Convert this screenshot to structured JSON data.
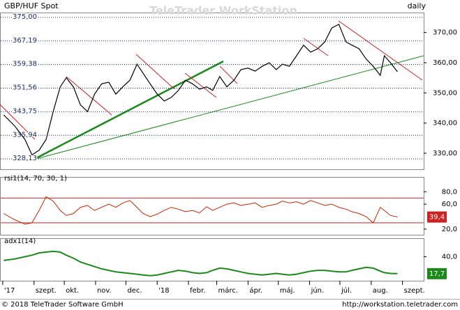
{
  "header": {
    "symbol": "GBP/HUF Spot",
    "period": "daily",
    "watermark": "TeleTrader WorkStation"
  },
  "footer": {
    "copyright": "© 2018 TeleTrader Software GmbH",
    "url": "http://workstation.teletrader.com"
  },
  "chart_data": [
    {
      "type": "line",
      "title": "GBP/HUF Spot",
      "x": [
        1,
        12,
        22,
        29,
        36,
        43,
        50,
        57,
        63,
        70,
        77,
        84,
        91,
        98,
        105,
        112,
        119,
        126,
        133,
        139,
        146,
        153,
        160,
        167,
        174,
        181,
        188,
        195,
        202,
        208,
        215,
        222,
        229,
        236,
        243,
        250,
        257,
        264,
        271,
        277,
        284,
        291,
        298,
        305,
        312,
        319,
        326,
        333,
        340,
        346,
        353,
        360,
        367,
        374,
        378,
        384,
        391
      ],
      "series": [
        {
          "name": "GBP/HUF Spot",
          "color": "#000000",
          "values": [
            342.7,
            339,
            334.6,
            329.5,
            331,
            334.6,
            343.8,
            352,
            355,
            352,
            346,
            343.8,
            349.6,
            353,
            353.5,
            349.6,
            352,
            354.2,
            359.5,
            356.5,
            353,
            349.6,
            347.3,
            348.5,
            350.8,
            354.2,
            353,
            351.2,
            352,
            350.8,
            355.4,
            352,
            354.2,
            357.7,
            358.2,
            357.2,
            358.8,
            360,
            357.7,
            359.5,
            358.8,
            362.3,
            365.8,
            363.5,
            364.6,
            366.9,
            371.5,
            372.7,
            366.9,
            365.8,
            364.6,
            361.2,
            358.8,
            355.8,
            362.3,
            360,
            357
          ]
        }
      ],
      "xlim": [
        -2,
        417
      ],
      "ylim": [
        324.7,
        376.6
      ],
      "yticks": [
        {
          "value": 330,
          "label": "330,00"
        },
        {
          "value": 340,
          "label": "340,00"
        },
        {
          "value": 350,
          "label": "350,00"
        },
        {
          "value": 360,
          "label": "360,00"
        },
        {
          "value": 370,
          "label": "370,00"
        }
      ],
      "levels": [
        {
          "value": 375,
          "label": "375,00"
        },
        {
          "value": 367.19,
          "label": "367,19"
        },
        {
          "value": 359.38,
          "label": "359,38"
        },
        {
          "value": 351.56,
          "label": "351,56"
        },
        {
          "value": 343.75,
          "label": "343,75"
        },
        {
          "value": 335.94,
          "label": "335,94"
        },
        {
          "value": 328.13,
          "label": "328,13"
        }
      ]
    },
    {
      "type": "line",
      "title": "rsi1(14, 70, 30, 1)",
      "series": [
        {
          "name": "rsi1",
          "color": "#cc2200",
          "values": [
            45,
            35,
            28,
            30,
            50,
            72,
            65,
            50,
            42,
            45,
            55,
            58,
            50,
            55,
            60,
            55,
            62,
            66,
            55,
            45,
            40,
            44,
            50,
            55,
            52,
            48,
            50,
            46,
            56,
            50,
            55,
            60,
            62,
            58,
            60,
            62,
            55,
            58,
            60,
            65,
            62,
            64,
            60,
            66,
            62,
            58,
            60,
            55,
            52,
            48,
            45,
            40,
            30,
            55,
            50,
            42,
            39.4
          ]
        }
      ],
      "ylim": [
        10.9,
        103.8
      ],
      "yticks": [
        {
          "value": 20,
          "label": "20,0"
        },
        {
          "value": 60,
          "label": "60,0"
        },
        {
          "value": 80,
          "label": "80,0"
        }
      ],
      "bounds": [
        70,
        30
      ],
      "current": {
        "value": 39.4,
        "label": "39,4",
        "color": "#cc2222"
      }
    },
    {
      "type": "line",
      "title": "adx1(14)",
      "series": [
        {
          "name": "adx1",
          "color": "#1a8a1a",
          "values": [
            35,
            37,
            40,
            42,
            45,
            46,
            47,
            46,
            42,
            38,
            33,
            30,
            27,
            24,
            22,
            20,
            19,
            18,
            17,
            16,
            15,
            16,
            18,
            20,
            22,
            21,
            19,
            18,
            19,
            22,
            25,
            24,
            22,
            20,
            18,
            17,
            16,
            17,
            18,
            17,
            16,
            17,
            19,
            21,
            22,
            22,
            21,
            20,
            20,
            22,
            24,
            26,
            25,
            21,
            19,
            18,
            17.7
          ]
        }
      ],
      "ylim": [
        8.4,
        64.2
      ],
      "yticks": [
        {
          "value": 40,
          "label": "40,0"
        }
      ],
      "current": {
        "value": 17.7,
        "label": "17,7",
        "color": "#1a8a1a"
      },
      "xticks": [
        {
          "value": 0,
          "label": "'17"
        },
        {
          "value": 31,
          "label": "szept."
        },
        {
          "value": 61,
          "label": "okt."
        },
        {
          "value": 92,
          "label": "nov."
        },
        {
          "value": 122,
          "label": "dec."
        },
        {
          "value": 153,
          "label": "'18"
        },
        {
          "value": 184,
          "label": "febr."
        },
        {
          "value": 212,
          "label": "márc."
        },
        {
          "value": 243,
          "label": "ápr."
        },
        {
          "value": 273,
          "label": "máj."
        },
        {
          "value": 304,
          "label": "jún."
        },
        {
          "value": 334,
          "label": "júl."
        },
        {
          "value": 365,
          "label": "aug."
        },
        {
          "value": 396,
          "label": "szept."
        }
      ]
    }
  ]
}
